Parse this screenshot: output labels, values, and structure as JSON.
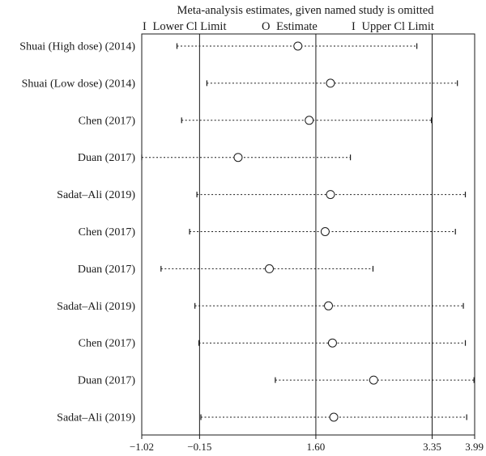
{
  "chart_data": {
    "type": "forest",
    "title": "Meta-analysis estimates, given named study is omitted",
    "legend": [
      {
        "symbol": "I",
        "label": "Lower Cl Limit"
      },
      {
        "symbol": "O",
        "label": "Estimate"
      },
      {
        "symbol": "I",
        "label": "Upper Cl Limit"
      }
    ],
    "xlim": [
      -1.02,
      3.99
    ],
    "ticks": [
      -1.02,
      -0.15,
      1.6,
      3.35,
      3.99
    ],
    "tick_labels": [
      "−1.02",
      "−0.15",
      "1.60",
      "3.35",
      "3.99"
    ],
    "reference_lines": [
      -0.15,
      1.6,
      3.35
    ],
    "studies": [
      {
        "label": "Shuai (High dose) (2014)",
        "lower": -0.49,
        "estimate": 1.33,
        "upper": 3.12
      },
      {
        "label": "Shuai (Low dose) (2014)",
        "lower": -0.04,
        "estimate": 1.82,
        "upper": 3.73
      },
      {
        "label": "Chen (2017)",
        "lower": -0.42,
        "estimate": 1.5,
        "upper": 3.34
      },
      {
        "label": "Duan (2017)",
        "lower": -1.02,
        "estimate": 0.43,
        "upper": 2.12
      },
      {
        "label": "Sadat–Ali (2019)",
        "lower": -0.19,
        "estimate": 1.82,
        "upper": 3.85
      },
      {
        "label": "Chen (2017)",
        "lower": -0.3,
        "estimate": 1.74,
        "upper": 3.7
      },
      {
        "label": "Duan (2017)",
        "lower": -0.73,
        "estimate": 0.9,
        "upper": 2.46
      },
      {
        "label": "Sadat–Ali (2019)",
        "lower": -0.22,
        "estimate": 1.79,
        "upper": 3.82
      },
      {
        "label": "Chen (2017)",
        "lower": -0.16,
        "estimate": 1.85,
        "upper": 3.85
      },
      {
        "label": "Duan (2017)",
        "lower": 0.99,
        "estimate": 2.47,
        "upper": 3.98
      },
      {
        "label": "Sadat–Ali (2019)",
        "lower": -0.13,
        "estimate": 1.87,
        "upper": 3.87
      }
    ]
  }
}
